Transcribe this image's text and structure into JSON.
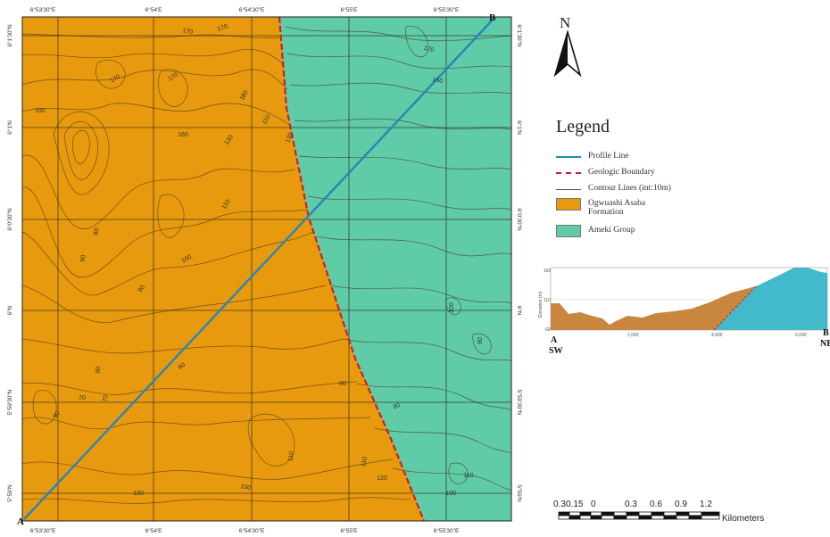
{
  "map": {
    "top_longitudes": [
      "6°53'30\"E",
      "6°54'E",
      "6°54'30\"E",
      "6°55'E",
      "6°55'30\"E"
    ],
    "bottom_longitudes": [
      "6°53'30\"E",
      "6°54'E",
      "6°54'30\"E",
      "6°55'E",
      "6°55'30\"E"
    ],
    "left_latitudes": [
      "6°1'30\"N",
      "6°1'N",
      "6°0'30\"N",
      "6°N",
      "5°59'30\"N",
      "5°59'N"
    ],
    "right_latitudes": [
      "6°1'30\"N",
      "6°1'N",
      "6°0'30\"N",
      "6°N",
      "5°59'30\"N",
      "5°59'N"
    ],
    "point_a": "A",
    "point_b": "B",
    "contour_labels": [
      "170",
      "170",
      "170",
      "170",
      "170",
      "160",
      "160",
      "180",
      "190",
      "130",
      "130",
      "110",
      "100",
      "90",
      "80",
      "70",
      "70",
      "80",
      "90",
      "90",
      "90",
      "80",
      "110",
      "130",
      "100",
      "110",
      "120",
      "110",
      "100",
      "90",
      "80",
      "100",
      "110"
    ],
    "colors": {
      "ogwuashi": "#E89A0E",
      "ameki": "#5FCBA7",
      "profile_line": "#2A85B8",
      "boundary": "#D11F1F",
      "contour": "#4A3A1A"
    }
  },
  "north_arrow": {
    "label": "N",
    "icon": "north-arrow-icon"
  },
  "legend": {
    "title": "Legend",
    "items": [
      {
        "label": "Profile Line",
        "symbol": "line",
        "color": "#2A85B8"
      },
      {
        "label": "Geologic Boundary",
        "symbol": "dashed-line",
        "color": "#D11F1F"
      },
      {
        "label": "Contour Lines (int:10m)",
        "symbol": "line",
        "color": "#555555"
      },
      {
        "label": "Ogwuashi Asaba\nFormation",
        "symbol": "box",
        "color": "#E89A0E"
      },
      {
        "label": "Ameki Group",
        "symbol": "box",
        "color": "#5FCBA7"
      }
    ]
  },
  "profile": {
    "y_axis_label": "Elevation (m)",
    "y_ticks": [
      "160",
      "110",
      "60"
    ],
    "x_ticks": [
      "2,000",
      "4,000",
      "6,000"
    ],
    "end_a": "A",
    "end_a_dir": "SW",
    "end_b": "B",
    "end_b_dir": "NE",
    "colors": {
      "ogwuashi": "#C9863F",
      "ameki": "#43B9CC",
      "boundary": "#D11F1F"
    }
  },
  "scale_bar": {
    "labels": [
      "0.3",
      "0.15",
      "0",
      "0.3",
      "0.6",
      "0.9",
      "1.2"
    ],
    "unit": "Kilometers"
  }
}
